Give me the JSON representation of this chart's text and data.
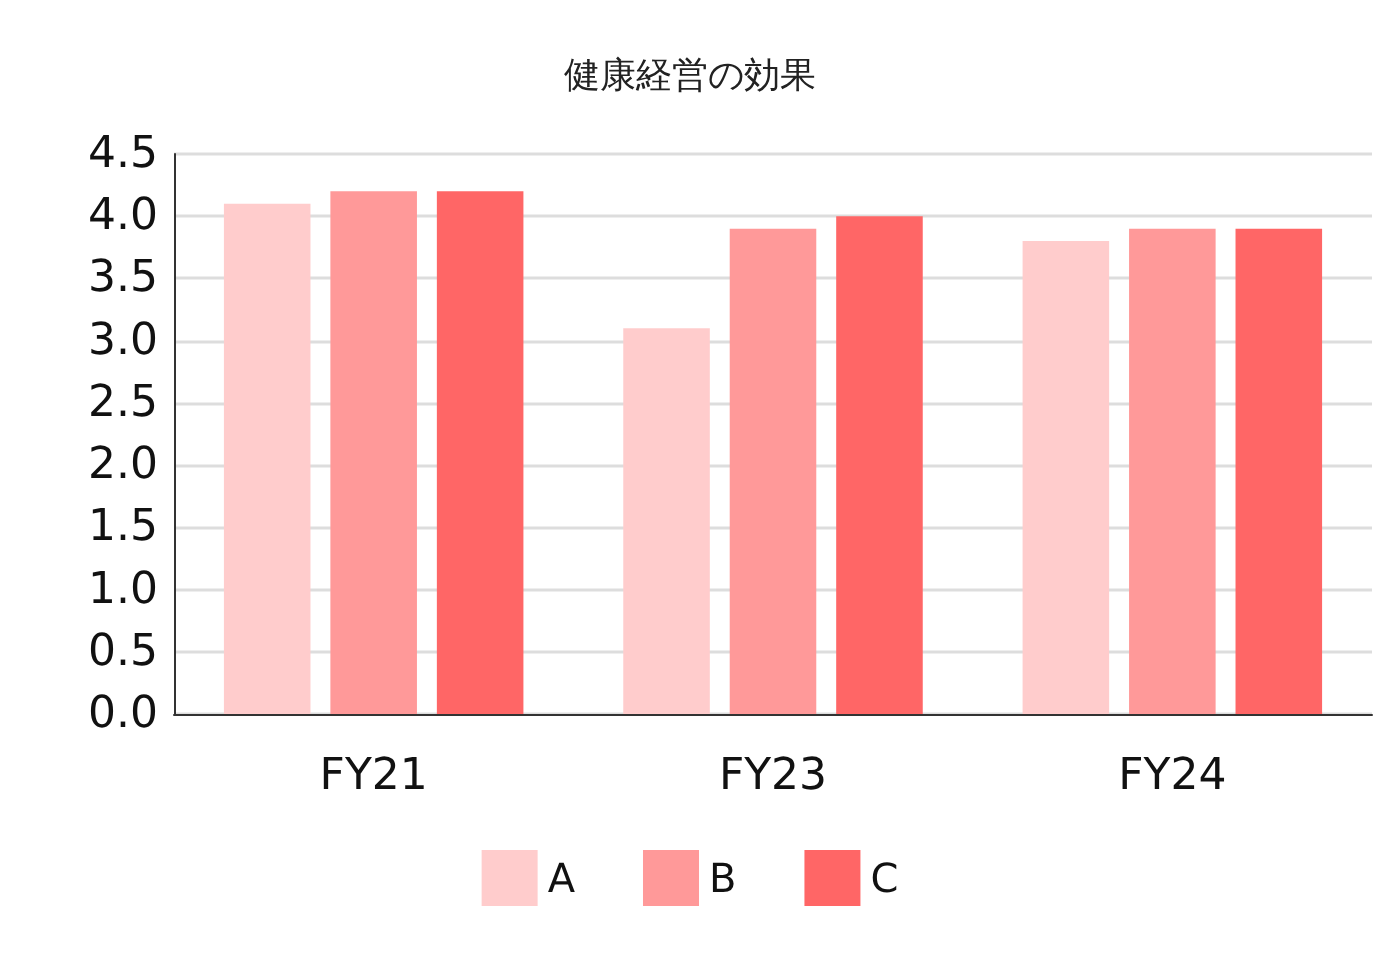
{
  "chart_data": {
    "type": "bar",
    "title": "健康経営の効果",
    "categories": [
      "FY21",
      "FY23",
      "FY24"
    ],
    "series": [
      {
        "name": "A",
        "color": "#ffcccc",
        "values": [
          4.1,
          3.1,
          3.8
        ]
      },
      {
        "name": "B",
        "color": "#ff9999",
        "values": [
          4.2,
          3.9,
          3.9
        ]
      },
      {
        "name": "C",
        "color": "#ff6666",
        "values": [
          4.2,
          4.0,
          3.9
        ]
      }
    ],
    "ylim": [
      0,
      4.5
    ],
    "yticks": [
      {
        "value": 0,
        "label": "0.0"
      },
      {
        "value": 0.5,
        "label": "0.5"
      },
      {
        "value": 1,
        "label": "1.0"
      },
      {
        "value": 1.5,
        "label": "1.5"
      },
      {
        "value": 2,
        "label": "2.0"
      },
      {
        "value": 2.5,
        "label": "2.5"
      },
      {
        "value": 3,
        "label": "3.0"
      },
      {
        "value": 3.5,
        "label": "3.5"
      },
      {
        "value": 4,
        "label": "4.0"
      },
      {
        "value": 4.5,
        "label": "4.5"
      }
    ],
    "grid": "y",
    "legend": "bottom"
  }
}
